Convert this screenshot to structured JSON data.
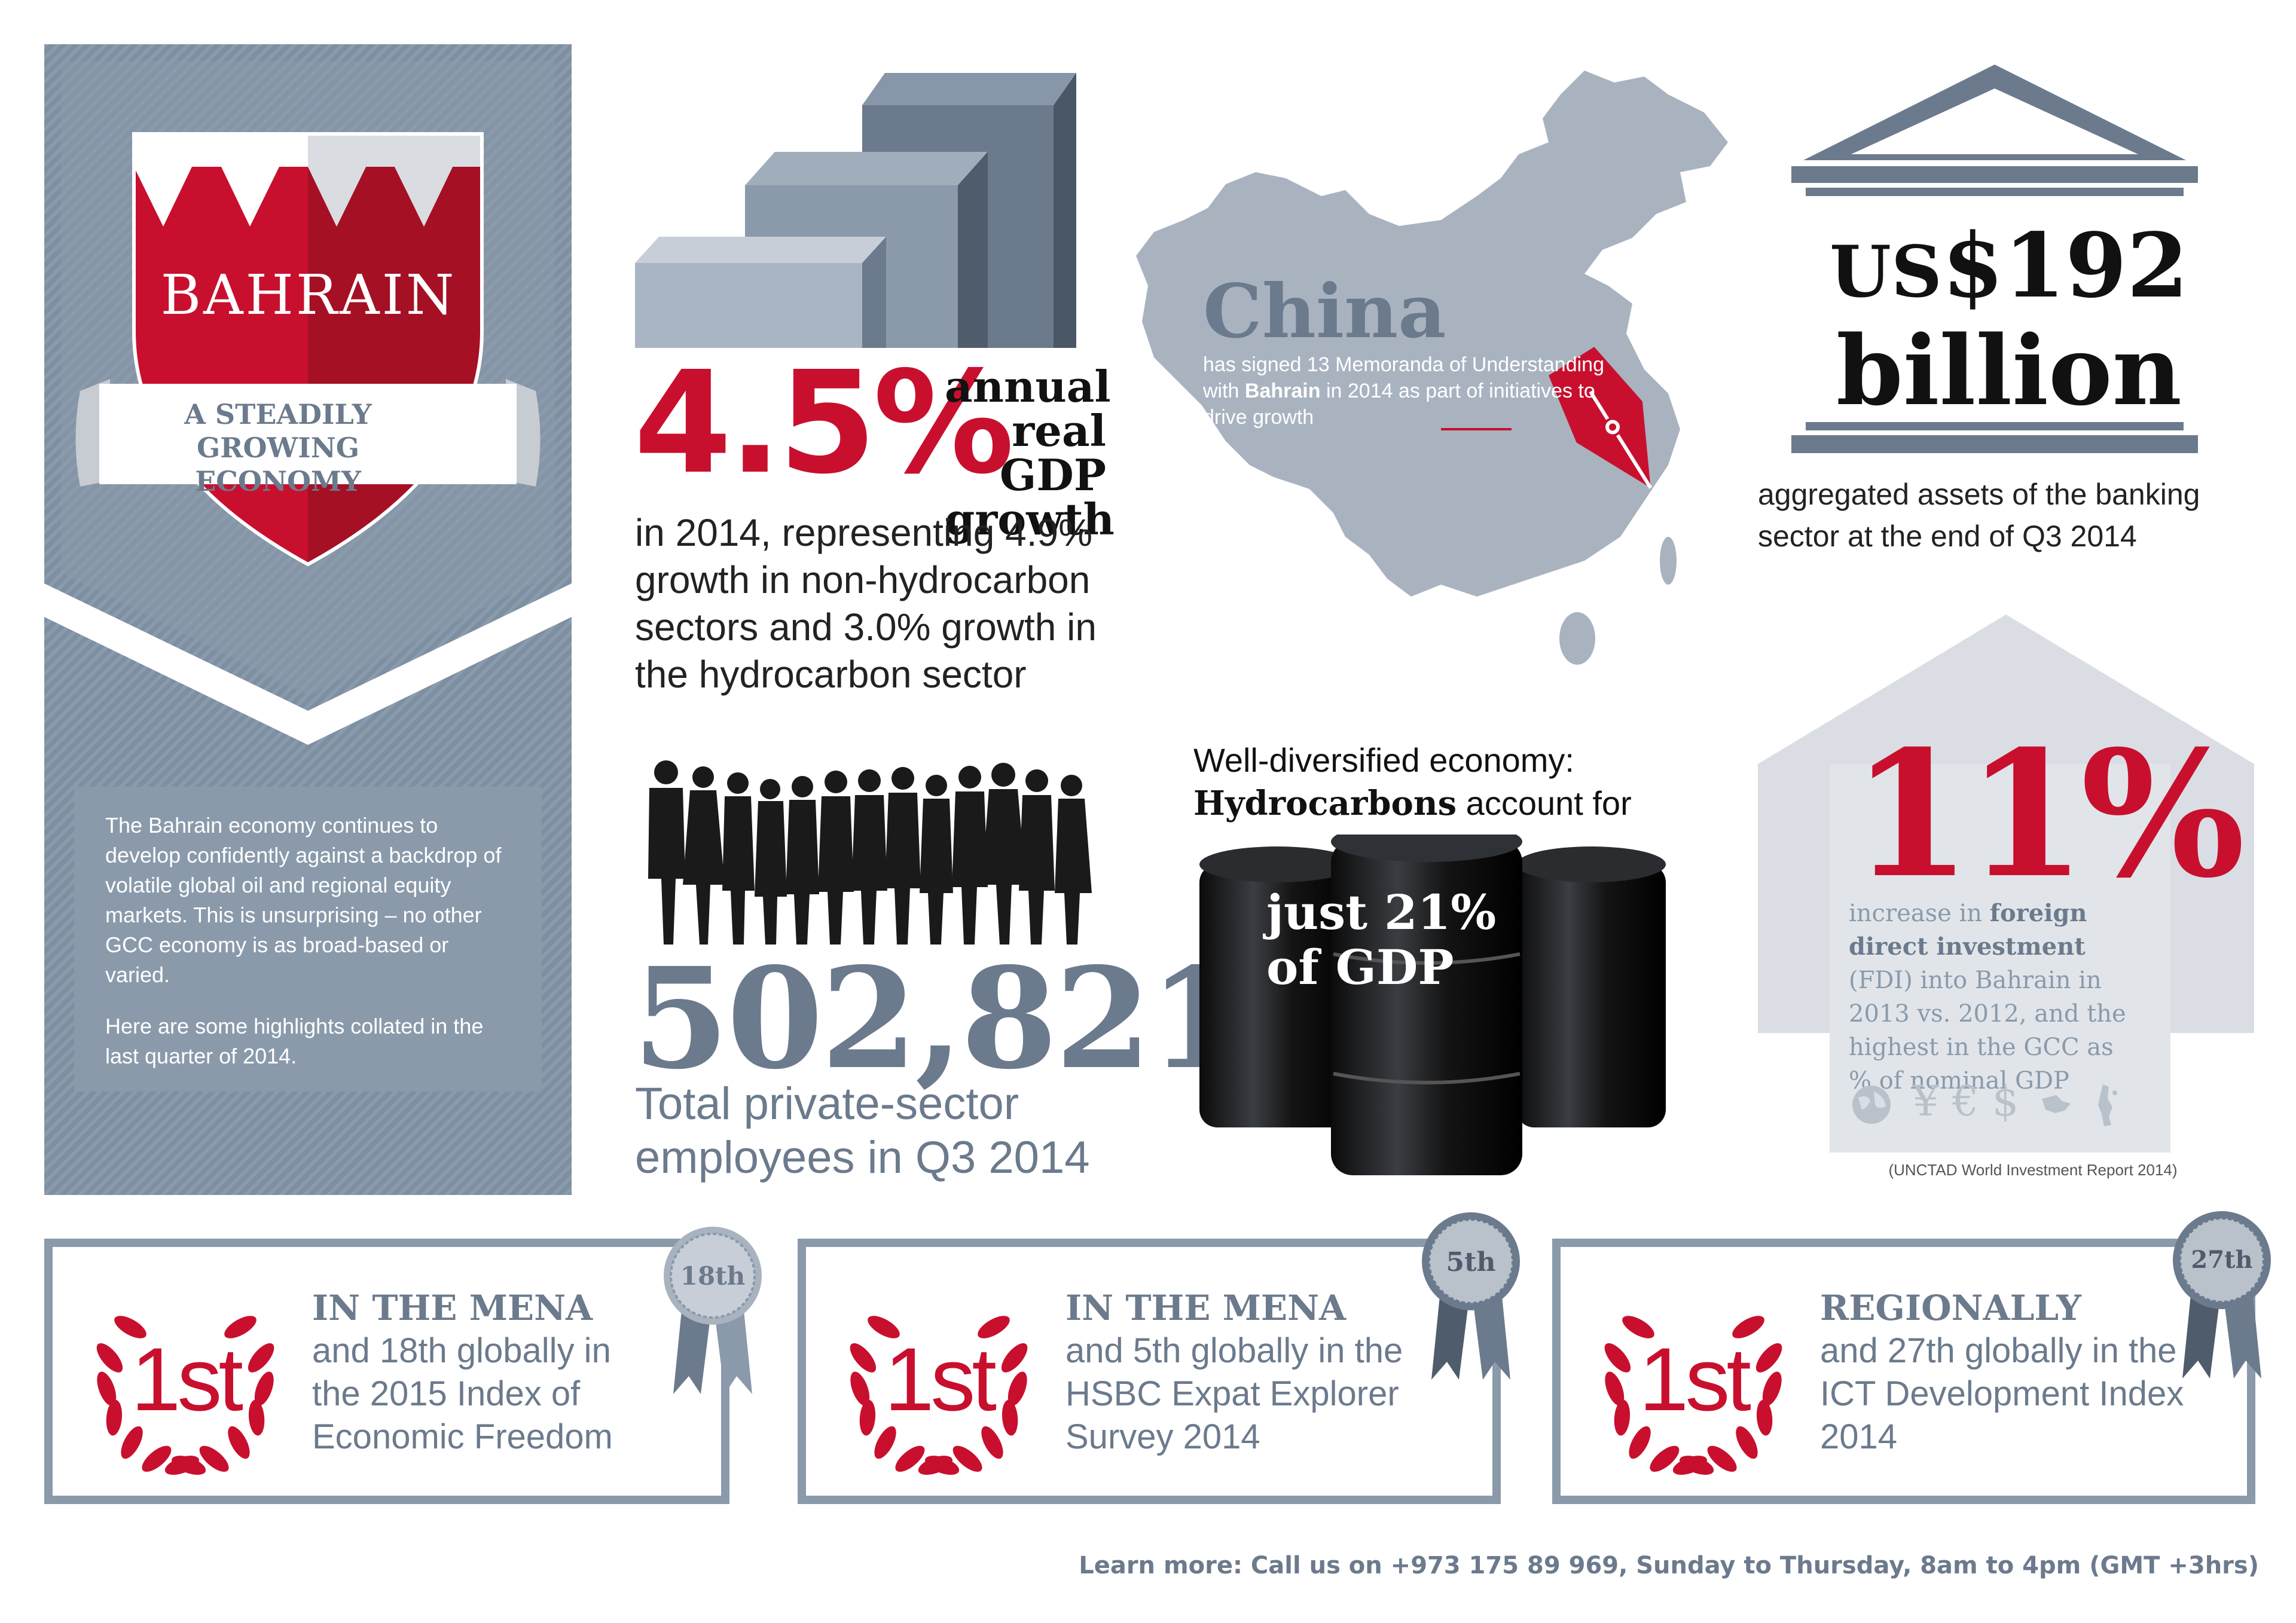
{
  "brand": {
    "country": "BAHRAIN",
    "tagline": "A STEADILY GROWING ECONOMY",
    "accent_color": "#c8102e",
    "slate_color": "#8a9aab",
    "dark_slate_color": "#6b7a8c"
  },
  "intro": {
    "paragraph1": "The Bahrain economy continues to develop confidently against a backdrop of volatile global oil and regional equity markets. This is unsurprising – no other GCC economy is as broad-based or varied.",
    "paragraph2": "Here are some highlights collated in the last quarter of 2014."
  },
  "gdp": {
    "value": "4.5%",
    "label_line1": "annual",
    "label_line2": "real GDP",
    "label_line3": "growth",
    "description": "in 2014, representing 4.9% growth in non-hydrocarbon sectors and 3.0% growth in the hydrocarbon sector"
  },
  "china": {
    "title": "China",
    "desc_part1": "has signed 13 Memoranda of Understanding with ",
    "desc_bold": "Bahrain",
    "desc_part2": " in 2014 as part of initiatives to drive growth"
  },
  "banking": {
    "currency": "US",
    "amount": "$192",
    "unit": "billion",
    "description": "aggregated assets of the banking sector at the end of Q3 2014"
  },
  "employees": {
    "value": "502,821",
    "description": "Total private-sector employees in Q3 2014"
  },
  "hydrocarbons": {
    "line1": "Well-diversified economy:",
    "bold": "Hydrocarbons",
    "line2_rest": " account for",
    "value_line1": "just 21%",
    "value_line2": "of GDP"
  },
  "fdi": {
    "value": "11%",
    "desc_pre": "increase in ",
    "desc_bold": "foreign direct investment",
    "desc_post": " (FDI) into Bahrain in 2013 vs. 2012, and the highest in the GCC as % of nominal GDP",
    "source": "(UNCTAD World Investment Report 2014)",
    "icons": [
      "globe-icon",
      "yen-icon",
      "euro-icon",
      "dollar-icon",
      "bahrain-map-icon",
      "bahrain-outline-icon"
    ],
    "currency_glyphs": "¥ € $"
  },
  "rankings": [
    {
      "badge": "1st",
      "ribbon": "18th",
      "title": "IN THE MENA",
      "description": "and 18th globally in the 2015 Index of Economic Freedom"
    },
    {
      "badge": "1st",
      "ribbon": "5th",
      "title": "IN THE MENA",
      "description": "and 5th globally in the HSBC Expat Explorer Survey 2014"
    },
    {
      "badge": "1st",
      "ribbon": "27th",
      "title": "REGIONALLY",
      "description": "and 27th globally in the ICT Development Index 2014"
    }
  ],
  "footer": {
    "text": "Learn more: Call us on +973 175 89 969, Sunday to Thursday, 8am to 4pm (GMT +3hrs)"
  }
}
